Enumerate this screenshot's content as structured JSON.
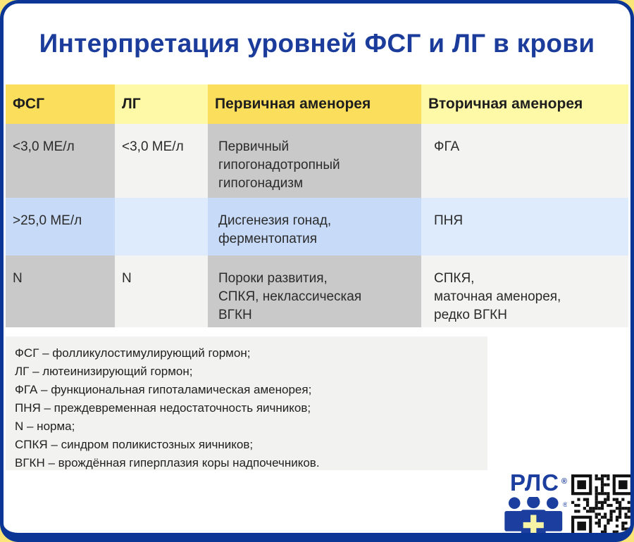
{
  "title": "Интерпретация уровней ФСГ и ЛГ в крови",
  "table": {
    "headers": [
      "ФСГ",
      "ЛГ",
      "Первичная аменорея",
      "Вторичная аменорея"
    ],
    "rows": [
      [
        "<3,0 МЕ/л",
        "<3,0 МЕ/л",
        "Первичный\nгипогонадотропный\nгипогонадизм",
        "ФГА"
      ],
      [
        ">25,0 МЕ/л",
        "",
        "Дисгенезия гонад,\nферментопатия",
        "ПНЯ"
      ],
      [
        "N",
        "N",
        "Пороки развития,\nСПКЯ, неклассическая\nВГКН",
        "СПКЯ,\nматочная аменорея,\nредко ВГКН"
      ]
    ]
  },
  "footnotes": [
    "ФСГ – фолликулостимулирующий гормон;",
    "ЛГ – лютеинизирующий гормон;",
    "ФГА – функциональная гипоталамическая аменорея;",
    "ПНЯ – преждевременная недостаточность яичников;",
    "N – норма;",
    "СПКЯ – синдром поликистозных яичников;",
    "ВГКН – врождённая гиперплазия коры надпочечников."
  ],
  "logo": {
    "text": "РЛС",
    "reg": "®"
  },
  "colors": {
    "page_bg_corner": "#fbe478",
    "border_navy": "#0c3695",
    "title_blue": "#1b3c9b",
    "header_yellow_dark": "#fbdf5c",
    "header_yellow_light": "#fdf9a6",
    "row_gray_dark": "#c9c9c9",
    "row_gray_light": "#f3f3f2",
    "row_blue_dark": "#c7daf8",
    "row_blue_light": "#ddebfd",
    "legend_bg": "#f2f2f1",
    "logo_blue": "#1c3f9f",
    "logo_cross_yellow": "#f8f4a6"
  }
}
